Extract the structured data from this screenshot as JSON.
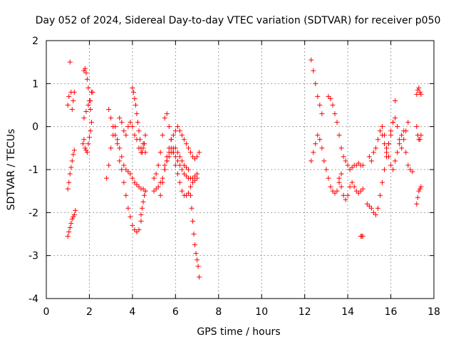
{
  "chart_data": {
    "type": "scatter",
    "title": "Day 052 of 2024, Sidereal Day-to-day VTEC variation (SDTVAR) for receiver p050",
    "xlabel": "GPS time / hours",
    "ylabel": "SDTVAR / TECUs",
    "xlim": [
      0,
      18
    ],
    "ylim": [
      -4,
      2
    ],
    "xticks": [
      "0",
      "2",
      "4",
      "6",
      "8",
      "10",
      "12",
      "14",
      "16",
      "18"
    ],
    "yticks": [
      "-4",
      "-3",
      "-2",
      "-1",
      "0",
      "1",
      "2"
    ],
    "grid": true,
    "marker": "+",
    "color": "#ff0000",
    "series": [
      {
        "name": "s1",
        "x": [
          1.0,
          1.05,
          1.1,
          1.15,
          1.2,
          1.25,
          1.3
        ],
        "y": [
          0.5,
          0.7,
          1.5,
          0.8,
          0.4,
          0.6,
          0.8
        ]
      },
      {
        "name": "s2",
        "x": [
          1.0,
          1.05,
          1.1,
          1.15,
          1.2,
          1.25,
          1.3,
          1.35
        ],
        "y": [
          -2.55,
          -2.45,
          -2.35,
          -2.25,
          -2.15,
          -2.1,
          -2.05,
          -1.95
        ]
      },
      {
        "name": "s3",
        "x": [
          1.0,
          1.05,
          1.1,
          1.15,
          1.2,
          1.25,
          1.3
        ],
        "y": [
          -1.45,
          -1.3,
          -1.1,
          -0.95,
          -0.8,
          -0.65,
          -0.55
        ]
      },
      {
        "name": "s4",
        "x": [
          1.75,
          1.8,
          1.85,
          1.9,
          1.95,
          2.0,
          2.05,
          2.1
        ],
        "y": [
          1.3,
          1.35,
          1.25,
          1.1,
          0.9,
          0.6,
          0.4,
          0.8
        ]
      },
      {
        "name": "s5",
        "x": [
          1.7,
          1.75,
          1.8,
          1.85,
          1.9,
          1.95,
          2.0,
          2.05,
          2.1
        ],
        "y": [
          -0.4,
          -0.3,
          -0.5,
          -0.55,
          -0.6,
          -0.4,
          -0.25,
          -0.1,
          0.1
        ]
      },
      {
        "name": "s6",
        "x": [
          1.75,
          1.85,
          1.95,
          2.05,
          2.15
        ],
        "y": [
          0.2,
          0.35,
          0.5,
          0.6,
          0.8
        ]
      },
      {
        "name": "s7",
        "x": [
          2.8,
          2.9,
          3.0,
          3.1,
          3.2,
          3.3,
          3.4,
          3.5,
          3.6,
          3.7,
          3.8,
          3.9,
          4.0,
          4.1,
          4.2,
          4.3,
          4.4
        ],
        "y": [
          -1.2,
          -0.9,
          -0.5,
          -0.2,
          0.0,
          -0.3,
          -0.8,
          -1.0,
          -1.3,
          -1.6,
          -1.9,
          -2.1,
          -2.3,
          -2.4,
          -2.45,
          -2.4,
          -2.2
        ]
      },
      {
        "name": "s8",
        "x": [
          2.9,
          3.0,
          3.1,
          3.2,
          3.3,
          3.4,
          3.5,
          3.6,
          3.7,
          3.8,
          3.9,
          4.0,
          4.1,
          4.2,
          4.3,
          4.4,
          4.5,
          4.6
        ],
        "y": [
          0.4,
          0.2,
          0.0,
          -0.2,
          -0.4,
          -0.5,
          -0.7,
          -0.9,
          -1.0,
          -1.05,
          -1.1,
          -1.2,
          -1.3,
          -1.35,
          -1.4,
          -1.45,
          -1.45,
          -1.5
        ]
      },
      {
        "name": "s9",
        "x": [
          3.4,
          3.5,
          3.6,
          3.7,
          3.8,
          3.9,
          4.0,
          4.1,
          4.2,
          4.3,
          4.4,
          4.5,
          4.6
        ],
        "y": [
          0.2,
          0.1,
          -0.1,
          -0.2,
          0.0,
          0.1,
          0.0,
          -0.2,
          -0.3,
          -0.5,
          -0.6,
          -0.4,
          -0.2
        ]
      },
      {
        "name": "s10",
        "x": [
          4.0,
          4.05,
          4.1,
          4.15,
          4.2,
          4.25,
          4.3,
          4.35,
          4.4,
          4.45,
          4.5,
          4.55,
          4.6
        ],
        "y": [
          0.9,
          0.8,
          0.65,
          0.5,
          0.3,
          0.1,
          -0.1,
          -0.3,
          -0.5,
          -0.6,
          -0.5,
          -0.4,
          -0.6
        ]
      },
      {
        "name": "s11",
        "x": [
          4.4,
          4.45,
          4.5,
          4.55,
          4.6
        ],
        "y": [
          -2.05,
          -1.9,
          -1.75,
          -1.6,
          -1.5
        ]
      },
      {
        "name": "s12",
        "x": [
          5.0,
          5.1,
          5.2,
          5.3,
          5.4,
          5.5,
          5.6,
          5.7,
          5.8,
          5.9,
          6.0,
          6.1,
          6.2,
          6.3,
          6.4,
          6.5,
          6.6,
          6.7,
          6.8,
          6.9,
          7.0
        ],
        "y": [
          -1.2,
          -1.1,
          -0.9,
          -0.6,
          -0.2,
          0.2,
          0.3,
          0.0,
          -0.3,
          -0.6,
          -0.9,
          -1.1,
          -1.3,
          -1.5,
          -1.6,
          -1.6,
          -1.55,
          -1.4,
          -1.3,
          -1.25,
          -1.2
        ]
      },
      {
        "name": "s13",
        "x": [
          5.0,
          5.1,
          5.2,
          5.3,
          5.4,
          5.5,
          5.6,
          5.7,
          5.8,
          5.9,
          6.0,
          6.1,
          6.2,
          6.3,
          6.4,
          6.5,
          6.6,
          6.7,
          6.8,
          6.9,
          7.0
        ],
        "y": [
          -1.5,
          -1.45,
          -1.4,
          -1.3,
          -1.2,
          -1.0,
          -0.8,
          -0.6,
          -0.5,
          -0.6,
          -0.7,
          -0.8,
          -0.9,
          -1.0,
          -1.1,
          -1.15,
          -1.2,
          -1.2,
          -1.2,
          -1.15,
          -1.1
        ]
      },
      {
        "name": "s14",
        "x": [
          5.5,
          5.6,
          5.7,
          5.8,
          5.9,
          6.0,
          6.1,
          6.2,
          6.3,
          6.4,
          6.5,
          6.6,
          6.7,
          6.8,
          6.9,
          7.0,
          7.1
        ],
        "y": [
          -0.9,
          -0.7,
          -0.5,
          -0.3,
          -0.2,
          -0.1,
          0.0,
          -0.1,
          -0.2,
          -0.3,
          -0.4,
          -0.5,
          -0.6,
          -0.7,
          -0.75,
          -0.7,
          -0.6
        ]
      },
      {
        "name": "s15",
        "x": [
          5.3,
          5.4,
          5.5,
          5.6,
          5.7,
          5.8,
          5.9,
          6.0,
          6.1,
          6.2,
          6.3,
          6.4,
          6.5,
          6.6
        ],
        "y": [
          -1.6,
          -1.3,
          -1.0,
          -0.8,
          -0.7,
          -0.6,
          -0.5,
          -0.5,
          -0.6,
          -0.7,
          -0.8,
          -0.9,
          -0.95,
          -1.0
        ]
      },
      {
        "name": "s16",
        "x": [
          6.7,
          6.75,
          6.8,
          6.85,
          6.9,
          6.95,
          7.0,
          7.05,
          7.1
        ],
        "y": [
          -1.6,
          -1.9,
          -2.2,
          -2.5,
          -2.75,
          -2.95,
          -3.1,
          -3.25,
          -3.5
        ]
      },
      {
        "name": "s17",
        "x": [
          12.3,
          12.4,
          12.5,
          12.6,
          12.7,
          12.8
        ],
        "y": [
          1.55,
          1.3,
          1.0,
          0.7,
          0.5,
          0.3
        ]
      },
      {
        "name": "s18",
        "x": [
          12.3,
          12.4,
          12.5,
          12.6,
          12.7,
          12.8,
          12.9,
          13.0,
          13.1,
          13.2,
          13.3,
          13.4,
          13.5,
          13.6,
          13.7
        ],
        "y": [
          -0.8,
          -0.6,
          -0.4,
          -0.2,
          -0.3,
          -0.5,
          -0.8,
          -1.0,
          -1.2,
          -1.4,
          -1.5,
          -1.55,
          -1.5,
          -1.3,
          -1.1
        ]
      },
      {
        "name": "s19",
        "x": [
          13.1,
          13.2,
          13.3,
          13.4,
          13.5,
          13.6,
          13.7,
          13.8
        ],
        "y": [
          0.7,
          0.65,
          0.5,
          0.3,
          0.1,
          -0.2,
          -0.5,
          -0.7
        ]
      },
      {
        "name": "s20",
        "x": [
          13.6,
          13.7,
          13.8,
          13.9,
          14.0,
          14.1,
          14.2,
          14.3,
          14.4,
          14.5,
          14.6,
          14.7
        ],
        "y": [
          -1.2,
          -1.4,
          -1.6,
          -1.7,
          -1.6,
          -1.4,
          -1.3,
          -1.4,
          -1.5,
          -1.55,
          -1.5,
          -1.45
        ]
      },
      {
        "name": "s21",
        "x": [
          13.9,
          14.0,
          14.1,
          14.2,
          14.3,
          14.4,
          14.5,
          14.6,
          14.7
        ],
        "y": [
          -0.8,
          -0.9,
          -1.0,
          -0.95,
          -0.9,
          -0.9,
          -0.85,
          -0.9,
          -0.9
        ]
      },
      {
        "name": "s22",
        "x": [
          14.6,
          14.65,
          14.7
        ],
        "y": [
          -2.55,
          -2.55,
          -2.55
        ]
      },
      {
        "name": "s23",
        "x": [
          14.9,
          15.0,
          15.1,
          15.2,
          15.3,
          15.4,
          15.5,
          15.6,
          15.7,
          15.8,
          15.9,
          16.0,
          16.1,
          16.2
        ],
        "y": [
          -1.8,
          -1.85,
          -1.9,
          -2.0,
          -2.05,
          -1.9,
          -1.6,
          -1.3,
          -1.0,
          -0.7,
          -0.4,
          -0.2,
          0.1,
          0.6
        ]
      },
      {
        "name": "s24",
        "x": [
          15.0,
          15.1,
          15.2,
          15.3,
          15.4,
          15.5,
          15.6,
          15.7,
          15.8,
          15.9,
          16.0,
          16.1,
          16.2,
          16.3,
          16.4,
          16.5,
          16.6,
          16.7,
          16.8,
          16.9,
          17.0
        ],
        "y": [
          -0.7,
          -0.8,
          -0.6,
          -0.5,
          -0.3,
          -0.1,
          0.0,
          -0.2,
          -0.5,
          -0.7,
          -0.9,
          -1.0,
          -0.8,
          -0.6,
          -0.4,
          -0.2,
          -0.1,
          -0.6,
          -0.9,
          -1.0,
          -1.05
        ]
      },
      {
        "name": "s25",
        "x": [
          15.6,
          15.7,
          15.8,
          15.9,
          16.0,
          16.1,
          16.2,
          16.3,
          16.4,
          16.5,
          16.6,
          16.7,
          16.8
        ],
        "y": [
          -0.2,
          -0.4,
          -0.6,
          -0.4,
          -0.1,
          0.1,
          0.2,
          0.0,
          -0.3,
          -0.5,
          -0.3,
          -0.1,
          0.1
        ]
      },
      {
        "name": "s26",
        "x": [
          17.2,
          17.25,
          17.3,
          17.35,
          17.4
        ],
        "y": [
          0.75,
          0.85,
          0.9,
          0.8,
          0.75
        ]
      },
      {
        "name": "s27",
        "x": [
          17.2,
          17.25,
          17.3,
          17.35,
          17.4
        ],
        "y": [
          0.0,
          -0.2,
          -0.3,
          -0.3,
          -0.2
        ]
      },
      {
        "name": "s28",
        "x": [
          17.2,
          17.25,
          17.3,
          17.35,
          17.4
        ],
        "y": [
          -1.8,
          -1.65,
          -1.5,
          -1.45,
          -1.4
        ]
      }
    ]
  }
}
